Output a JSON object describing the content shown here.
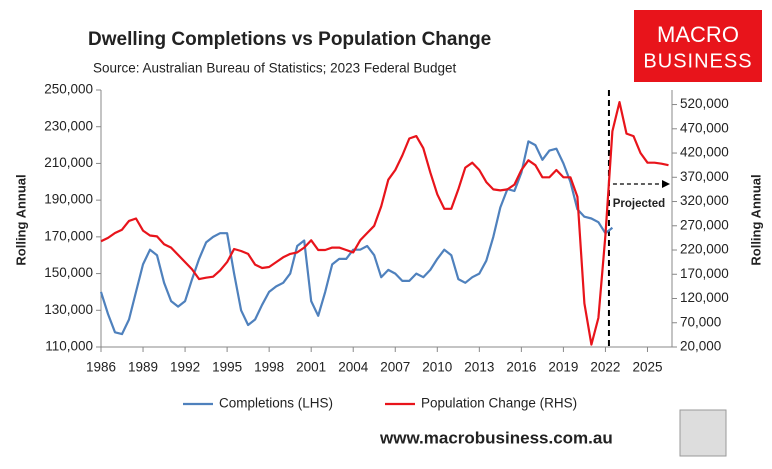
{
  "chart_data": {
    "type": "line",
    "title": "Dwelling Completions vs Population Change",
    "subtitle": "Source: Australian Bureau of Statistics; 2023 Federal Budget",
    "y_label": "Rolling Annual",
    "y2_label": "Rolling Annual",
    "x": [
      1986,
      1986.5,
      1987,
      1987.5,
      1988,
      1988.5,
      1989,
      1989.5,
      1990,
      1990.5,
      1991,
      1991.5,
      1992,
      1992.5,
      1993,
      1993.5,
      1994,
      1994.5,
      1995,
      1995.5,
      1996,
      1996.5,
      1997,
      1997.5,
      1998,
      1998.5,
      1999,
      1999.5,
      2000,
      2000.5,
      2001,
      2001.5,
      2002,
      2002.5,
      2003,
      2003.5,
      2004,
      2004.5,
      2005,
      2005.5,
      2006,
      2006.5,
      2007,
      2007.5,
      2008,
      2008.5,
      2009,
      2009.5,
      2010,
      2010.5,
      2011,
      2011.5,
      2012,
      2012.5,
      2013,
      2013.5,
      2014,
      2014.5,
      2015,
      2015.5,
      2016,
      2016.5,
      2017,
      2017.5,
      2018,
      2018.5,
      2019,
      2019.5,
      2020,
      2020.5,
      2021,
      2021.5,
      2022,
      2022.5,
      2023,
      2023.5,
      2024,
      2024.5,
      2025,
      2025.5,
      2026,
      2026.5
    ],
    "series": [
      {
        "name": "Completions (LHS)",
        "color": "#4f81bd",
        "axis": "y",
        "values": [
          140000,
          128000,
          118000,
          117000,
          125000,
          140000,
          155000,
          163000,
          160000,
          145000,
          135000,
          132000,
          135000,
          147000,
          158000,
          167000,
          170000,
          172000,
          172000,
          150000,
          130000,
          122000,
          125000,
          133000,
          140000,
          143000,
          145000,
          150000,
          165000,
          168000,
          135000,
          127000,
          140000,
          155000,
          158000,
          158000,
          163000,
          163000,
          165000,
          160000,
          148000,
          152000,
          150000,
          146000,
          146000,
          150000,
          148000,
          152000,
          158000,
          163000,
          160000,
          147000,
          145000,
          148000,
          150000,
          157000,
          170000,
          186000,
          196000,
          195000,
          205000,
          222000,
          220000,
          212000,
          217000,
          218000,
          210000,
          200000,
          185000,
          181000,
          180000,
          178000,
          172000,
          175000,
          null,
          null,
          null,
          null,
          null,
          null,
          null,
          null
        ]
      },
      {
        "name": "Population Change (RHS)",
        "color": "#e8141b",
        "axis": "y2",
        "values": [
          238000,
          245000,
          255000,
          262000,
          280000,
          285000,
          260000,
          250000,
          248000,
          232000,
          225000,
          210000,
          195000,
          180000,
          160000,
          163000,
          165000,
          178000,
          195000,
          222000,
          218000,
          212000,
          190000,
          183000,
          185000,
          195000,
          205000,
          212000,
          215000,
          225000,
          240000,
          220000,
          220000,
          225000,
          225000,
          220000,
          215000,
          240000,
          255000,
          270000,
          310000,
          365000,
          385000,
          415000,
          450000,
          455000,
          430000,
          380000,
          335000,
          305000,
          305000,
          345000,
          390000,
          400000,
          385000,
          360000,
          345000,
          343000,
          345000,
          355000,
          385000,
          405000,
          395000,
          370000,
          370000,
          385000,
          370000,
          370000,
          330000,
          110000,
          25000,
          80000,
          250000,
          465000,
          525000,
          460000,
          455000,
          420000,
          400000,
          400000,
          398000,
          395000
        ]
      }
    ],
    "xlim": [
      1986,
      2026.75
    ],
    "xticks": [
      1986,
      1989,
      1992,
      1995,
      1998,
      2001,
      2004,
      2007,
      2010,
      2013,
      2016,
      2019,
      2022,
      2025
    ],
    "ylim": [
      110000,
      250000
    ],
    "yticks": [
      {
        "value": 110000,
        "label": "110,000"
      },
      {
        "value": 130000,
        "label": "130,000"
      },
      {
        "value": 150000,
        "label": "150,000"
      },
      {
        "value": 170000,
        "label": "170,000"
      },
      {
        "value": 190000,
        "label": "190,000"
      },
      {
        "value": 210000,
        "label": "210,000"
      },
      {
        "value": 230000,
        "label": "230,000"
      },
      {
        "value": 250000,
        "label": "250,000"
      }
    ],
    "y2lim": [
      20000,
      550000
    ],
    "y2ticks": [
      {
        "value": 20000,
        "label": "20,000"
      },
      {
        "value": 70000,
        "label": "70,000"
      },
      {
        "value": 120000,
        "label": "120,000"
      },
      {
        "value": 170000,
        "label": "170,000"
      },
      {
        "value": 220000,
        "label": "220,000"
      },
      {
        "value": 270000,
        "label": "270,000"
      },
      {
        "value": 320000,
        "label": "320,000"
      },
      {
        "value": 370000,
        "label": "370,000"
      },
      {
        "value": 420000,
        "label": "420,000"
      },
      {
        "value": 470000,
        "label": "470,000"
      },
      {
        "value": 520000,
        "label": "520,000"
      }
    ],
    "grid": false,
    "legend": "bottom",
    "annotations": [
      {
        "text": "Projected",
        "x": 2022.25
      }
    ]
  },
  "logo": {
    "line1": "MACRO",
    "line2": "BUSINESS"
  },
  "footer": "www.macrobusiness.com.au"
}
